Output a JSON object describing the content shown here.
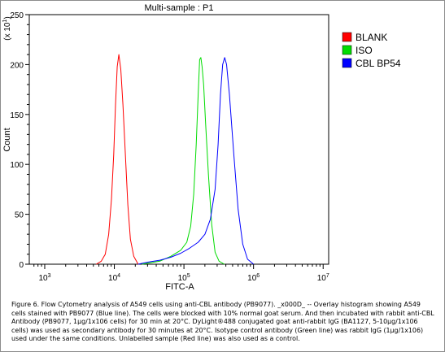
{
  "chart_data": {
    "type": "line",
    "title": "Multi-sample : P1",
    "xlabel": "FITC-A",
    "ylabel": "Count",
    "y_multiplier_label": "(x 10",
    "y_multiplier_exp": "1",
    "y_multiplier_close": ")",
    "x_scale": "log",
    "xlim": [
      600,
      12000000
    ],
    "ylim": [
      0,
      250
    ],
    "x_ticks": [
      {
        "base": "10",
        "exp": "3",
        "value": 1000
      },
      {
        "base": "10",
        "exp": "4",
        "value": 10000
      },
      {
        "base": "10",
        "exp": "5",
        "value": 100000
      },
      {
        "base": "10",
        "exp": "6",
        "value": 1000000
      },
      {
        "base": "10",
        "exp": "7",
        "value": 10000000
      }
    ],
    "y_ticks": [
      "0",
      "50",
      "100",
      "150",
      "200",
      "250"
    ],
    "grid": false,
    "legend_position": "right",
    "series": [
      {
        "name": "BLANK",
        "color": "#ff0000",
        "points": [
          [
            5500,
            0
          ],
          [
            6500,
            3
          ],
          [
            7400,
            10
          ],
          [
            8300,
            30
          ],
          [
            9100,
            65
          ],
          [
            9800,
            110
          ],
          [
            10400,
            160
          ],
          [
            11000,
            198
          ],
          [
            11600,
            210
          ],
          [
            12400,
            195
          ],
          [
            13300,
            160
          ],
          [
            14400,
            110
          ],
          [
            15600,
            60
          ],
          [
            17000,
            25
          ],
          [
            19000,
            8
          ],
          [
            22000,
            0
          ]
        ]
      },
      {
        "name": "ISO",
        "color": "#00dc00",
        "points": [
          [
            25000,
            0
          ],
          [
            45000,
            3
          ],
          [
            65000,
            8
          ],
          [
            90000,
            14
          ],
          [
            110000,
            22
          ],
          [
            125000,
            38
          ],
          [
            138000,
            70
          ],
          [
            150000,
            120
          ],
          [
            160000,
            170
          ],
          [
            168000,
            205
          ],
          [
            175000,
            207
          ],
          [
            182000,
            198
          ],
          [
            192000,
            180
          ],
          [
            205000,
            140
          ],
          [
            225000,
            90
          ],
          [
            250000,
            40
          ],
          [
            280000,
            12
          ],
          [
            320000,
            3
          ],
          [
            380000,
            0
          ]
        ]
      },
      {
        "name": "CBL BP54",
        "color": "#0000ff",
        "points": [
          [
            22000,
            0
          ],
          [
            30000,
            2
          ],
          [
            45000,
            4
          ],
          [
            65000,
            7
          ],
          [
            90000,
            11
          ],
          [
            120000,
            16
          ],
          [
            160000,
            22
          ],
          [
            200000,
            30
          ],
          [
            240000,
            45
          ],
          [
            280000,
            75
          ],
          [
            310000,
            120
          ],
          [
            335000,
            170
          ],
          [
            360000,
            200
          ],
          [
            385000,
            207
          ],
          [
            410000,
            200
          ],
          [
            450000,
            170
          ],
          [
            520000,
            110
          ],
          [
            600000,
            55
          ],
          [
            700000,
            20
          ],
          [
            820000,
            5
          ],
          [
            1000000,
            0
          ]
        ]
      }
    ]
  },
  "caption": "Figure 6. Flow Cytometry analysis of A549 cells using anti-CBL antibody (PB9077). _x000D_ -- Overlay histogram showing A549 cells stained with PB9077 (Blue line). The cells were blocked with 10% normal goat serum. And then incubated with rabbit anti-CBL Antibody (PB9077, 1µg/1x106 cells) for 30 min at 20°C. DyLight®488 conjugated goat anti-rabbit IgG (BA1127, 5-10µg/1x106 cells) was used as secondary antibody for 30 minutes at 20°C. Isotype control antibody (Green line) was rabbit IgG (1µg/1x106) used under the same conditions. Unlabelled sample (Red line) was also used as a control."
}
